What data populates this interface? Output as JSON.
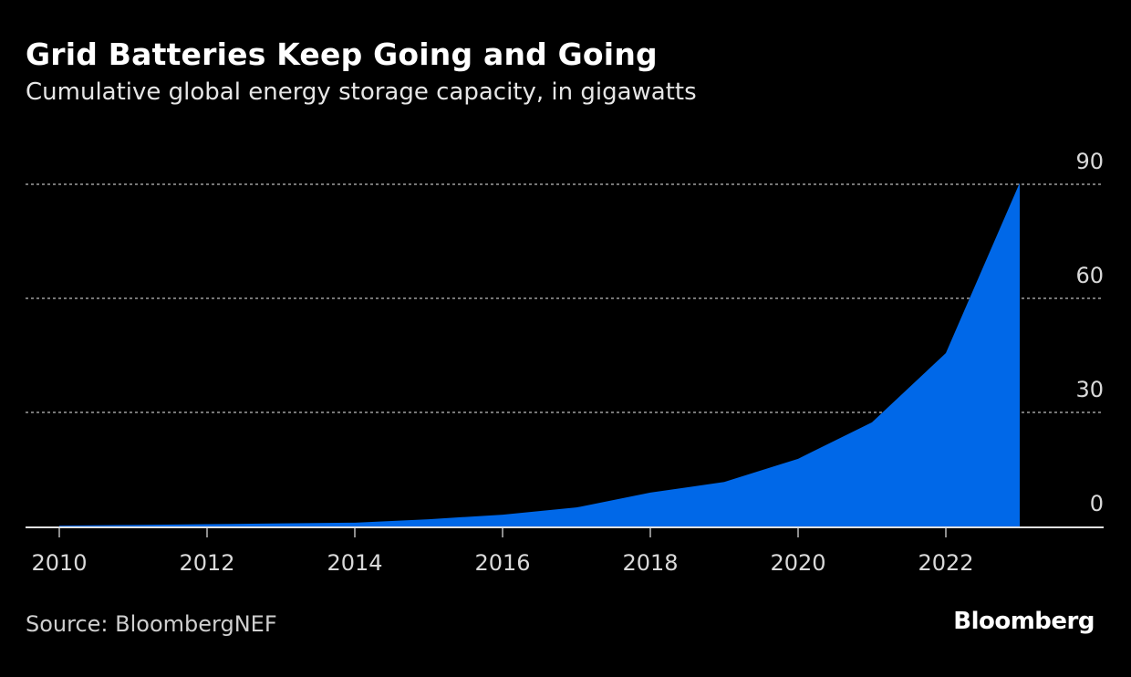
{
  "title": "Grid Batteries Keep Going and Going",
  "subtitle": "Cumulative global energy storage capacity, in gigawatts",
  "source": "Source: BloombergNEF",
  "logo": "Bloomberg",
  "colors": {
    "area": "#0068e8",
    "background": "#000000",
    "grid": "#777777"
  },
  "chart_data": {
    "type": "area",
    "title": "Grid Batteries Keep Going and Going",
    "subtitle": "Cumulative global energy storage capacity, in gigawatts",
    "x": [
      2010,
      2011,
      2012,
      2013,
      2014,
      2015,
      2016,
      2017,
      2018,
      2019,
      2020,
      2021,
      2022,
      2023
    ],
    "values": [
      0.2,
      0.4,
      0.6,
      0.8,
      1.0,
      1.9,
      3.1,
      5.0,
      8.9,
      11.7,
      17.8,
      27.4,
      45.6,
      90.4
    ],
    "xlim": [
      2009.8,
      2024.1
    ],
    "ylim": [
      0,
      90
    ],
    "yticks": [
      0,
      30,
      60,
      90
    ],
    "xticks": [
      2010,
      2012,
      2014,
      2016,
      2018,
      2020,
      2022
    ],
    "xtick_labels": [
      "2010",
      "2012",
      "2014",
      "2016",
      "2018",
      "2020",
      "2022"
    ],
    "ytick_labels": [
      "0",
      "30",
      "60",
      "90"
    ],
    "y_axis_side": "right",
    "grid": "horizontal dotted"
  }
}
